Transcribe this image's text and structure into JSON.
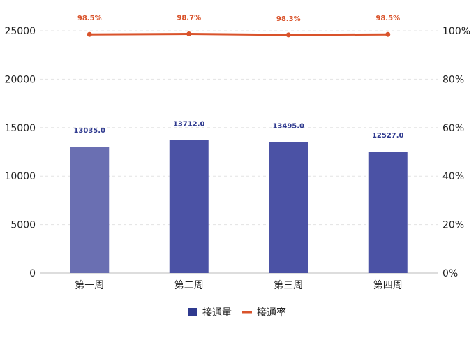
{
  "chart_data": {
    "type": "bar",
    "categories": [
      "第一周",
      "第二周",
      "第三周",
      "第四周"
    ],
    "series": [
      {
        "name": "接通量",
        "type": "bar",
        "axis": "left",
        "values": [
          13035.0,
          13712.0,
          13495.0,
          12527.0
        ],
        "labels": [
          "13035.0",
          "13712.0",
          "13495.0",
          "12527.0"
        ]
      },
      {
        "name": "接通率",
        "type": "line",
        "axis": "right",
        "values": [
          98.5,
          98.7,
          98.3,
          98.5
        ],
        "labels": [
          "98.5%",
          "98.7%",
          "98.3%",
          "98.5%"
        ]
      }
    ],
    "y_left": {
      "ylim": [
        0,
        25000
      ],
      "ticks": [
        "0",
        "5000",
        "10000",
        "15000",
        "20000",
        "25000"
      ]
    },
    "y_right": {
      "ylim": [
        0,
        100
      ],
      "ticks": [
        "0%",
        "20%",
        "40%",
        "60%",
        "80%",
        "100%"
      ]
    },
    "grid": "horizontal-dashed",
    "legend": "bottom-center",
    "colors": {
      "bar": "#4b52a5",
      "bar_highlight": "#6a6fb2",
      "line": "#d9532b",
      "bar_label": "#2f3a8f",
      "line_label": "#d9532b",
      "grid": "#e3e3e3",
      "axis": "#bbbbbb"
    }
  }
}
